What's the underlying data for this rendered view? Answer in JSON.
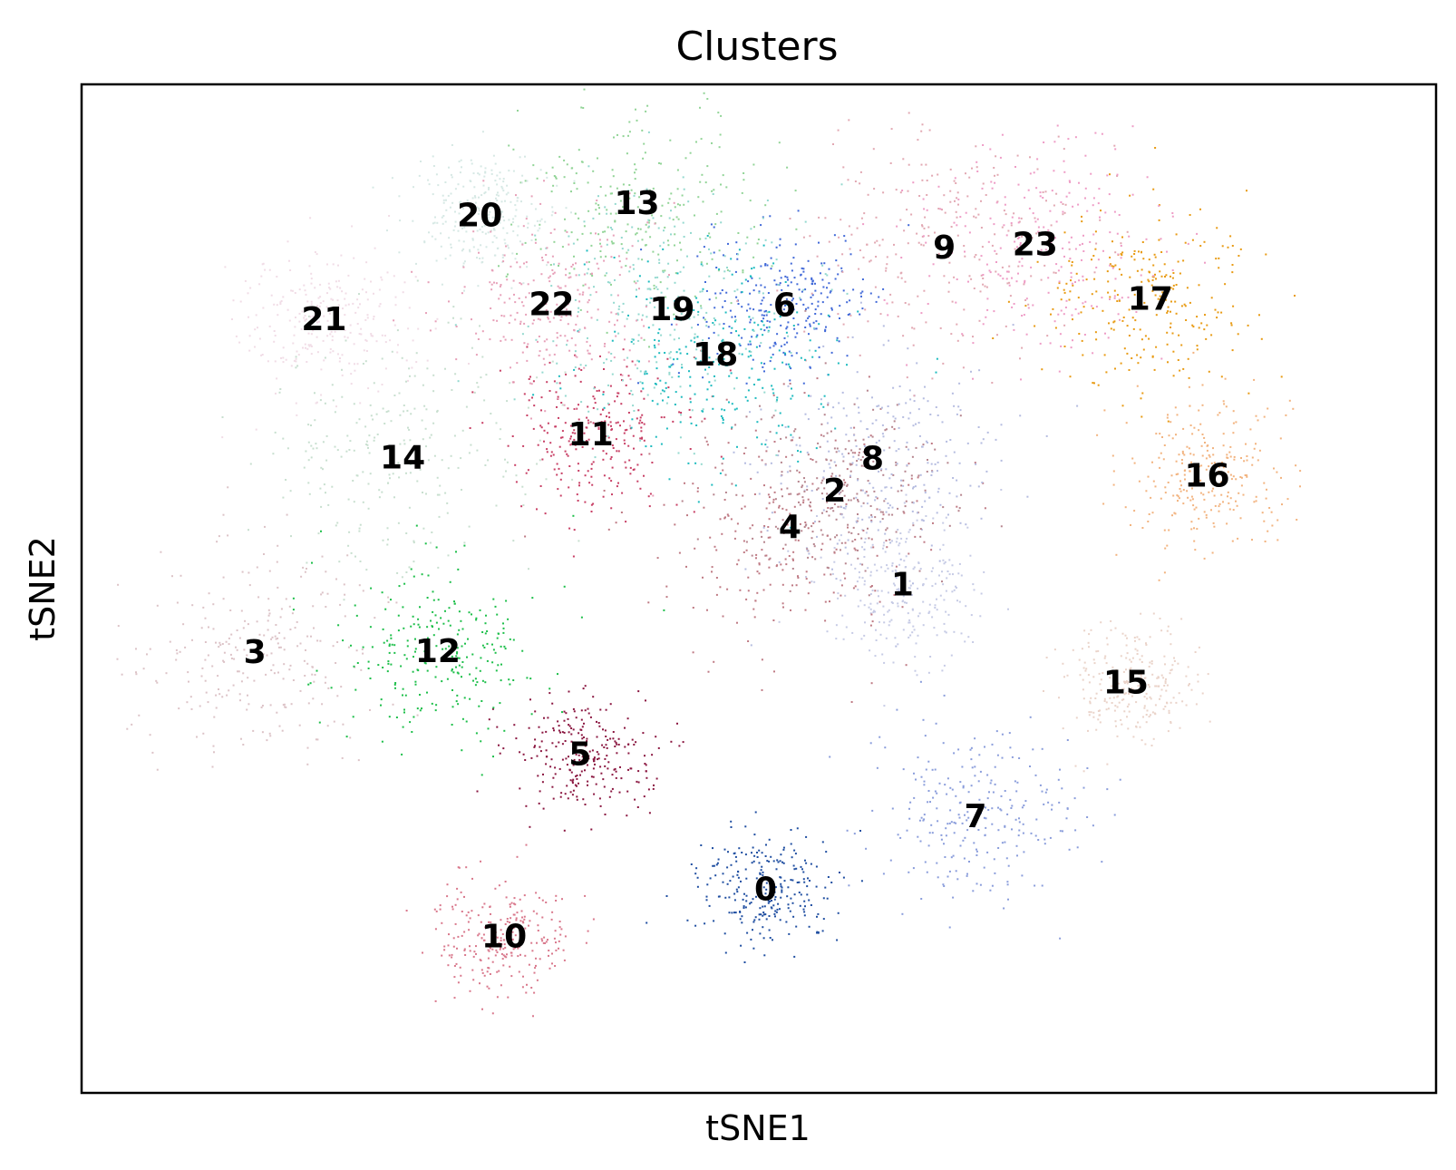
{
  "chart_data": {
    "type": "scatter",
    "title": "Clusters",
    "xlabel": "tSNE1",
    "ylabel": "tSNE2",
    "xlim": [
      0,
      100
    ],
    "ylim": [
      0,
      100
    ],
    "grid": false,
    "legend": "on data",
    "ticks": "none",
    "clusters": [
      {
        "label": "0",
        "x": 50.5,
        "y": 20.3,
        "color": "#1f4ea1"
      },
      {
        "label": "1",
        "x": 60.6,
        "y": 50.5,
        "color": "#c6cbe5"
      },
      {
        "label": "2",
        "x": 55.6,
        "y": 59.8,
        "color": "#b6858e"
      },
      {
        "label": "3",
        "x": 12.8,
        "y": 43.8,
        "color": "#dcc3c7"
      },
      {
        "label": "4",
        "x": 52.3,
        "y": 56.2,
        "color": "#bf7a84"
      },
      {
        "label": "5",
        "x": 36.8,
        "y": 33.7,
        "color": "#8a1640"
      },
      {
        "label": "6",
        "x": 51.9,
        "y": 78.2,
        "color": "#4169d8"
      },
      {
        "label": "7",
        "x": 66.0,
        "y": 27.5,
        "color": "#8a9ddb"
      },
      {
        "label": "8",
        "x": 58.4,
        "y": 63.0,
        "color": "#b5bce0"
      },
      {
        "label": "9",
        "x": 63.7,
        "y": 83.9,
        "color": "#e2a8b2"
      },
      {
        "label": "10",
        "x": 31.2,
        "y": 15.6,
        "color": "#d9788c"
      },
      {
        "label": "11",
        "x": 37.6,
        "y": 65.4,
        "color": "#c83f65"
      },
      {
        "label": "12",
        "x": 26.3,
        "y": 43.9,
        "color": "#1dbf4a"
      },
      {
        "label": "13",
        "x": 41.0,
        "y": 88.3,
        "color": "#92d497"
      },
      {
        "label": "14",
        "x": 23.7,
        "y": 63.1,
        "color": "#c8dfcf"
      },
      {
        "label": "15",
        "x": 77.1,
        "y": 40.8,
        "color": "#ead3c9"
      },
      {
        "label": "16",
        "x": 83.1,
        "y": 61.3,
        "color": "#f2b37f"
      },
      {
        "label": "17",
        "x": 78.9,
        "y": 78.8,
        "color": "#e89b13"
      },
      {
        "label": "18",
        "x": 46.8,
        "y": 73.3,
        "color": "#1dbbbf"
      },
      {
        "label": "19",
        "x": 43.6,
        "y": 77.8,
        "color": "#94d9cf"
      },
      {
        "label": "20",
        "x": 29.4,
        "y": 87.1,
        "color": "#d6e8e4"
      },
      {
        "label": "21",
        "x": 17.9,
        "y": 76.8,
        "color": "#f1dce6"
      },
      {
        "label": "22",
        "x": 34.7,
        "y": 78.3,
        "color": "#e7a0b8"
      },
      {
        "label": "23",
        "x": 70.4,
        "y": 84.2,
        "color": "#ee9cc6"
      }
    ]
  }
}
